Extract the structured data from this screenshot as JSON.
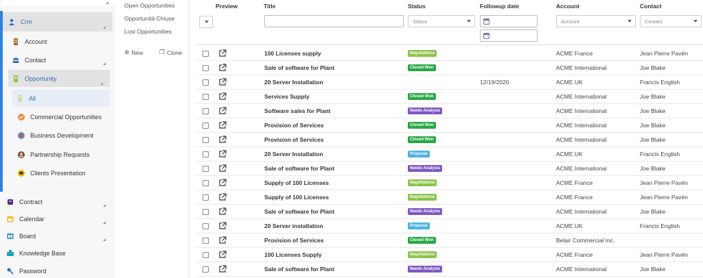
{
  "sidebar": {
    "items": [
      {
        "key": "crm",
        "label": "Crm",
        "icon": "user-icon"
      },
      {
        "key": "account",
        "label": "Account",
        "icon": "building-icon"
      },
      {
        "key": "contact",
        "label": "Contact",
        "icon": "people-icon"
      },
      {
        "key": "opportunity",
        "label": "Opportunity",
        "icon": "document-icon"
      },
      {
        "key": "all",
        "label": "All",
        "icon": "document-icon"
      },
      {
        "key": "commercial",
        "label": "Commercial Opportunities",
        "icon": "handshake-icon"
      },
      {
        "key": "bizdev",
        "label": "Business Development",
        "icon": "globe-icon"
      },
      {
        "key": "partnership",
        "label": "Partnership Requests",
        "icon": "person-circle-icon"
      },
      {
        "key": "clients",
        "label": "Clients Presentation",
        "icon": "presentation-icon"
      },
      {
        "key": "contract",
        "label": "Contract",
        "icon": "scroll-icon"
      },
      {
        "key": "calendar",
        "label": "Calendar",
        "icon": "calendar-icon"
      },
      {
        "key": "board",
        "label": "Board",
        "icon": "board-icon"
      },
      {
        "key": "kb",
        "label": "Knowledge Base",
        "icon": "books-icon"
      },
      {
        "key": "password",
        "label": "Password",
        "icon": "key-icon"
      }
    ]
  },
  "views": {
    "links": [
      "Open Opportunities",
      "Opportunità Chiuse",
      "Lost Opportunities"
    ],
    "new_label": "New",
    "clone_label": "Clone"
  },
  "table": {
    "headers": {
      "preview": "Preview",
      "title": "Title",
      "status": "Status",
      "followup": "Followup date",
      "account": "Account",
      "contact": "Contact"
    },
    "filters": {
      "status_placeholder": "Status",
      "account_placeholder": "Account",
      "contact_placeholder": "Contact"
    },
    "status_colors": {
      "Negotiations": "#8bc34a",
      "Closed Won": "#27a844",
      "Needs Analysis": "#7e57c2",
      "Proposal": "#4ab3e0"
    },
    "rows": [
      {
        "title": "100 Licenses supply",
        "status": "Negotiations",
        "followup": "",
        "account": "ACME France",
        "contact": "Jean Pierre Pavén"
      },
      {
        "title": "Sale of software for Plant",
        "status": "Closed Won",
        "followup": "",
        "account": "ACME International",
        "contact": "Joe Blake"
      },
      {
        "title": "20 Server Installation",
        "status": "",
        "followup": "12/19/2020",
        "account": "ACME UK",
        "contact": "Francis English"
      },
      {
        "title": "Services Supply",
        "status": "Closed Won",
        "followup": "",
        "account": "ACME International",
        "contact": "Joe Blake"
      },
      {
        "title": "Software sales for Plant",
        "status": "Needs Analysis",
        "followup": "",
        "account": "ACME International",
        "contact": "Joe Blake"
      },
      {
        "title": "Provision of Services",
        "status": "Closed Won",
        "followup": "",
        "account": "ACME International",
        "contact": "Joe Blake"
      },
      {
        "title": "Provision of Services",
        "status": "Closed Won",
        "followup": "",
        "account": "ACME International",
        "contact": "Joe Blake"
      },
      {
        "title": "20 Server Installation",
        "status": "Proposal",
        "followup": "",
        "account": "ACME UK",
        "contact": "Francis English"
      },
      {
        "title": "Sale of software for Plant",
        "status": "Needs Analysis",
        "followup": "",
        "account": "ACME International",
        "contact": "Joe Blake"
      },
      {
        "title": "Supply of 100 Licenses",
        "status": "Negotiations",
        "followup": "",
        "account": "ACME France",
        "contact": "Jean Pierre Pavén"
      },
      {
        "title": "Supply of 100 Licenses",
        "status": "Negotiations",
        "followup": "",
        "account": "ACME France",
        "contact": "Jean Pierre Pavén"
      },
      {
        "title": "Sale of software for Plant",
        "status": "Needs Analysis",
        "followup": "",
        "account": "ACME International",
        "contact": "Joe Blake"
      },
      {
        "title": "20 Server installation",
        "status": "Proposal",
        "followup": "",
        "account": "ACME UK",
        "contact": "Francis English"
      },
      {
        "title": "Provision of Services",
        "status": "Closed Won",
        "followup": "",
        "account": "Belair Commercial Inc.",
        "contact": ""
      },
      {
        "title": "100 Licenses Supply",
        "status": "Negotiations",
        "followup": "",
        "account": "ACME France",
        "contact": "Jean Pierre Pavén"
      },
      {
        "title": "Sale of software for Plant",
        "status": "Needs Analysis",
        "followup": "",
        "account": "ACME International",
        "contact": "Joe Blake"
      }
    ]
  }
}
